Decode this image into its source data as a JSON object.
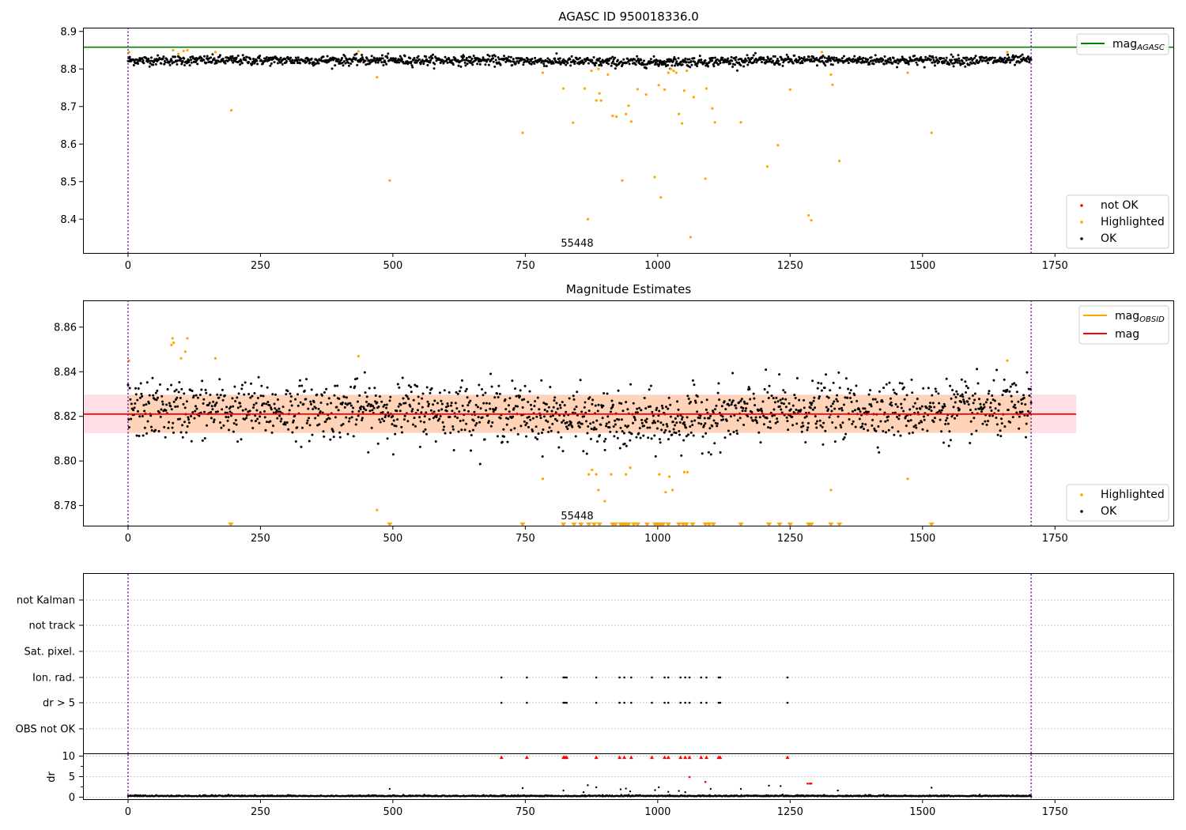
{
  "chart_data": [
    {
      "type": "scatter",
      "title": "AGASC ID 950018336.0",
      "xlim": [
        -85,
        1975
      ],
      "ylim": [
        8.31,
        8.91
      ],
      "xticks": [
        0,
        250,
        500,
        750,
        1000,
        1250,
        1500,
        1750
      ],
      "xtick_labels": [
        "0",
        "250",
        "500",
        "750",
        "1000",
        "1250",
        "1500",
        "1750"
      ],
      "yticks": [
        8.4,
        8.5,
        8.6,
        8.7,
        8.8,
        8.9
      ],
      "ytick_labels": [
        "8.4",
        "8.5",
        "8.6",
        "8.7",
        "8.8",
        "8.9"
      ],
      "annotation": "55448",
      "annotation_x": 848,
      "vlines": [
        0,
        1705
      ],
      "series": [
        {
          "name": "mag_AGASC",
          "kind": "hline",
          "color": "#008000",
          "y": 8.858
        },
        {
          "name": "not OK",
          "kind": "points",
          "color": "#ff0000",
          "x": [],
          "y": []
        },
        {
          "name": "Highlighted",
          "kind": "points",
          "color": "#ffa500",
          "x": [
            2,
            85,
            95,
            105,
            112,
            165,
            195,
            435,
            470,
            494,
            745,
            783,
            822,
            840,
            862,
            868,
            875,
            884,
            888,
            890,
            893,
            906,
            915,
            922,
            933,
            940,
            945,
            950,
            962,
            978,
            994,
            1002,
            1006,
            1013,
            1020,
            1025,
            1030,
            1035,
            1040,
            1046,
            1050,
            1055,
            1062,
            1068,
            1090,
            1092,
            1103,
            1108,
            1157,
            1207,
            1227,
            1250,
            1285,
            1290,
            1310,
            1327,
            1330,
            1343,
            1472,
            1517,
            1660
          ],
          "y": [
            8.845,
            8.85,
            8.84,
            8.848,
            8.85,
            8.845,
            8.69,
            8.847,
            8.778,
            8.503,
            8.63,
            8.79,
            8.748,
            8.657,
            8.748,
            8.4,
            8.795,
            8.716,
            8.8,
            8.735,
            8.716,
            8.785,
            8.675,
            8.673,
            8.503,
            8.68,
            8.702,
            8.66,
            8.746,
            8.732,
            8.512,
            8.757,
            8.458,
            8.745,
            8.79,
            8.8,
            8.795,
            8.79,
            8.68,
            8.655,
            8.742,
            8.795,
            8.352,
            8.725,
            8.508,
            8.748,
            8.695,
            8.658,
            8.658,
            8.54,
            8.597,
            8.745,
            8.41,
            8.397,
            8.845,
            8.785,
            8.758,
            8.555,
            8.79,
            8.63,
            8.845
          ]
        },
        {
          "name": "OK",
          "kind": "points",
          "color": "#000000",
          "center": 8.823,
          "spread": 0.0075,
          "dip": 0.005,
          "x_range": [
            0,
            1705
          ],
          "count": 1550
        }
      ],
      "legend_upper": [
        "mag_AGASC"
      ],
      "legend_lower": [
        "not OK",
        "Highlighted",
        "OK"
      ]
    },
    {
      "type": "scatter",
      "title": "Magnitude Estimates",
      "xlim": [
        -85,
        1975
      ],
      "ylim": [
        8.771,
        8.872
      ],
      "xticks": [
        0,
        250,
        500,
        750,
        1000,
        1250,
        1500,
        1750
      ],
      "xtick_labels": [
        "0",
        "250",
        "500",
        "750",
        "1000",
        "1250",
        "1500",
        "1750"
      ],
      "yticks": [
        8.78,
        8.8,
        8.82,
        8.84,
        8.86
      ],
      "ytick_labels": [
        "8.78",
        "8.80",
        "8.82",
        "8.84",
        "8.86"
      ],
      "annotation": "55448",
      "annotation_x": 848,
      "vlines": [
        0,
        1705
      ],
      "mag": 8.821,
      "mag_band_outer": [
        8.8125,
        8.8298
      ],
      "mag_band_inner": [
        8.8128,
        8.8295
      ],
      "band_x_range": [
        -85,
        1790
      ],
      "series": [
        {
          "name": "mag_OBSID",
          "kind": "line",
          "color": "#ffa500",
          "y": 8.821
        },
        {
          "name": "mag",
          "kind": "hline",
          "color": "#ff0000",
          "y": 8.821
        },
        {
          "name": "Highlighted",
          "kind": "points",
          "color": "#ffa500",
          "x": [
            2,
            82,
            84,
            86,
            100,
            108,
            112,
            165,
            435,
            470,
            783,
            870,
            876,
            884,
            888,
            900,
            912,
            940,
            948,
            1003,
            1015,
            1022,
            1028,
            1050,
            1056,
            1327,
            1472,
            1660
          ],
          "y": [
            8.845,
            8.852,
            8.855,
            8.853,
            8.846,
            8.849,
            8.855,
            8.846,
            8.847,
            8.778,
            8.792,
            8.794,
            8.796,
            8.794,
            8.787,
            8.782,
            8.794,
            8.794,
            8.797,
            8.794,
            8.786,
            8.793,
            8.787,
            8.795,
            8.795,
            8.787,
            8.792,
            8.845
          ]
        },
        {
          "name": "Highlighted (below range)",
          "kind": "markers-down",
          "color": "#ffa500",
          "x": [
            194,
            494,
            745,
            822,
            842,
            855,
            870,
            880,
            890,
            915,
            920,
            930,
            935,
            940,
            945,
            955,
            962,
            980,
            995,
            1000,
            1005,
            1010,
            1020,
            1040,
            1048,
            1054,
            1066,
            1090,
            1097,
            1105,
            1157,
            1210,
            1230,
            1250,
            1285,
            1290,
            1327,
            1343,
            1517
          ],
          "y": 8.7715
        },
        {
          "name": "OK",
          "kind": "points",
          "color": "#000000",
          "center": 8.823,
          "spread": 0.0075,
          "dip": 0.006,
          "x_range": [
            0,
            1705
          ],
          "count": 1550
        }
      ],
      "legend_upper": [
        "mag_OBSID",
        "mag"
      ],
      "legend_lower": [
        "Highlighted",
        "OK"
      ]
    },
    {
      "type": "scatter",
      "title": "",
      "xlim": [
        -85,
        1975
      ],
      "xticks": [
        0,
        250,
        500,
        750,
        1000,
        1250,
        1500,
        1750
      ],
      "xtick_labels": [
        "0",
        "250",
        "500",
        "750",
        "1000",
        "1250",
        "1500",
        "1750"
      ],
      "vlines": [
        0,
        1705
      ],
      "flag_rows": [
        "not Kalman",
        "not track",
        "Sat. pixel.",
        "Ion. rad.",
        "dr > 5",
        "OBS not OK"
      ],
      "flag_points": {
        "Ion. rad.": [
          705,
          753,
          822,
          825,
          828,
          884,
          928,
          937,
          950,
          989,
          1013,
          1020,
          1043,
          1052,
          1060,
          1082,
          1092,
          1115,
          1118,
          1245
        ],
        "dr > 5": [
          705,
          753,
          822,
          825,
          828,
          884,
          928,
          937,
          950,
          989,
          1013,
          1020,
          1043,
          1052,
          1060,
          1082,
          1092,
          1115,
          1118,
          1245
        ]
      },
      "dr": {
        "ylabel": "dr",
        "ylim": [
          -0.5,
          10.5
        ],
        "yticks": [
          0,
          5,
          10
        ],
        "ytick_labels": [
          "0",
          "5",
          "10"
        ],
        "clipped_x": [
          705,
          753,
          822,
          825,
          828,
          884,
          928,
          937,
          950,
          989,
          1013,
          1020,
          1043,
          1052,
          1060,
          1082,
          1092,
          1115,
          1118,
          1245
        ],
        "clipped_y": 9.7,
        "red_x": [
          1060,
          1090,
          1283,
          1287,
          1290
        ],
        "red_y": [
          4.9,
          3.7,
          3.3,
          3.3,
          3.3
        ],
        "outlier_x": [
          494,
          745,
          822,
          860,
          868,
          884,
          930,
          940,
          948,
          995,
          1002,
          1020,
          1040,
          1052,
          1100,
          1157,
          1210,
          1232,
          1340,
          1517
        ],
        "outlier_y": [
          2.0,
          2.2,
          1.6,
          1.2,
          2.9,
          2.4,
          1.9,
          2.1,
          1.4,
          1.7,
          2.4,
          1.3,
          1.5,
          1.2,
          2.0,
          2.0,
          2.8,
          2.7,
          1.6,
          2.3
        ],
        "baseline": 0.2
      }
    }
  ]
}
